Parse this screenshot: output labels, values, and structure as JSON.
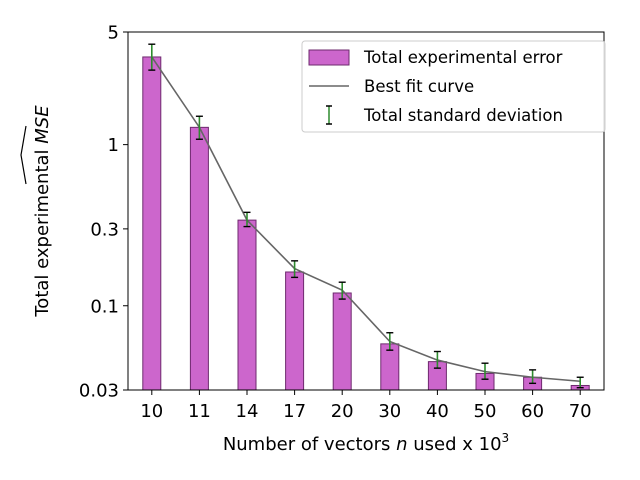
{
  "chart_data": {
    "type": "bar",
    "title": "",
    "xlabel_prefix": "Number of vectors ",
    "xlabel_var": "n",
    "xlabel_mid": " used x 10",
    "xlabel_exp": "3",
    "ylabel_prefix": "Total experimental ",
    "ylabel_symbol": "MSE",
    "yscale": "log",
    "ylim": [
      0.03,
      5
    ],
    "yticks": [
      0.03,
      0.1,
      0.3,
      1,
      5
    ],
    "ytick_labels": [
      "0.03",
      "0.1",
      "0.3",
      "1",
      "5"
    ],
    "categories": [
      "10",
      "11",
      "14",
      "17",
      "20",
      "30",
      "40",
      "50",
      "60",
      "70"
    ],
    "series": [
      {
        "name": "Total experimental error",
        "kind": "bar",
        "color": "#cc66cc",
        "edge_color": "#6e2a6e",
        "values": [
          3.5,
          1.28,
          0.34,
          0.162,
          0.12,
          0.058,
          0.045,
          0.038,
          0.036,
          0.032
        ]
      },
      {
        "name": "Best fit curve",
        "kind": "line",
        "color": "#666666",
        "values": [
          3.5,
          1.28,
          0.34,
          0.17,
          0.125,
          0.06,
          0.046,
          0.039,
          0.036,
          0.034
        ]
      },
      {
        "name": "Total standard deviation",
        "kind": "errorbar",
        "color": "#2e8b2e",
        "cap_color": "#000000",
        "lower": [
          2.9,
          1.08,
          0.31,
          0.15,
          0.11,
          0.053,
          0.041,
          0.035,
          0.033,
          0.031
        ],
        "upper": [
          4.2,
          1.5,
          0.38,
          0.19,
          0.14,
          0.068,
          0.052,
          0.044,
          0.04,
          0.036
        ]
      }
    ],
    "legend_position": "top-right",
    "grid": false
  }
}
